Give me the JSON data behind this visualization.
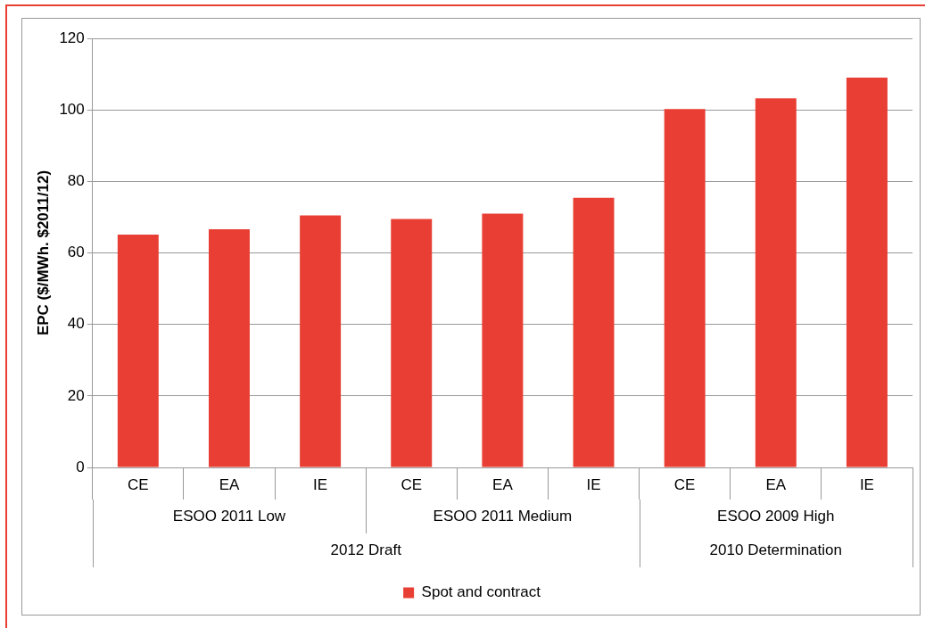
{
  "chart_data": {
    "type": "bar",
    "ylabel": "EPC ($/MWh. $2011/12)",
    "categories": [
      "CE",
      "EA",
      "IE",
      "CE",
      "EA",
      "IE",
      "CE",
      "EA",
      "IE"
    ],
    "series": [
      {
        "name": "Spot and contract",
        "color": "#e83e33",
        "values": [
          65.1,
          66.6,
          70.5,
          69.5,
          71,
          75.4,
          100.2,
          103.2,
          109
        ]
      }
    ],
    "annotations": [
      "ESOO 2011 Low",
      "ESOO 2011 Medium",
      "ESOO 2009 High",
      "2012 Draft",
      "2010 Determination"
    ],
    "ylim": [
      0,
      120
    ],
    "yticks": [
      0,
      20,
      40,
      60,
      80,
      100,
      120
    ],
    "grid": "y",
    "legend": "bottom"
  }
}
